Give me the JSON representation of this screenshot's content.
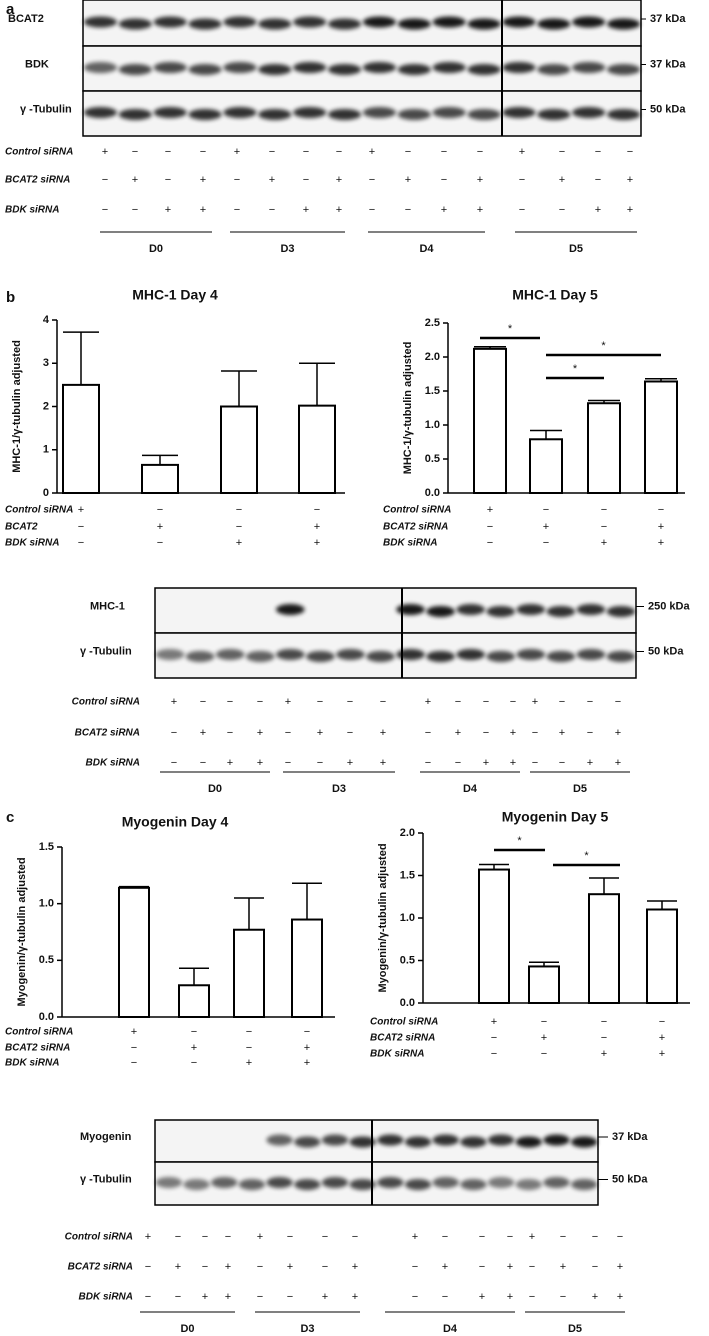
{
  "panel_labels": [
    "a",
    "b",
    "c"
  ],
  "blot_a": {
    "rows": [
      "BCAT2",
      "BDK",
      "γ -Tubulin"
    ],
    "markers": [
      "37 kDa",
      "37 kDa",
      "50 kDa"
    ],
    "conditions": [
      {
        "name": "Control siRNA",
        "signs": [
          "+",
          "−",
          "−",
          "−",
          "+",
          "−",
          "−",
          "−",
          "+",
          "−",
          "−",
          "−",
          "+",
          "−",
          "−",
          "−"
        ]
      },
      {
        "name": "BCAT2 siRNA",
        "signs": [
          "−",
          "+",
          "−",
          "+",
          "−",
          "+",
          "−",
          "+",
          "−",
          "+",
          "−",
          "+",
          "−",
          "+",
          "−",
          "+"
        ]
      },
      {
        "name": "BDK siRNA",
        "signs": [
          "−",
          "−",
          "+",
          "+",
          "−",
          "−",
          "+",
          "+",
          "−",
          "−",
          "+",
          "+",
          "−",
          "−",
          "+",
          "+"
        ]
      }
    ],
    "groups": [
      "D0",
      "D3",
      "D4",
      "D5"
    ]
  },
  "blot_b": {
    "rows": [
      "MHC-1",
      "γ -Tubulin"
    ],
    "markers": [
      "250 kDa",
      "50 kDa"
    ],
    "conditions": [
      {
        "name": "Control siRNA",
        "signs": [
          "+",
          "−",
          "−",
          "−",
          "+",
          "−",
          "−",
          "−",
          "+",
          "−",
          "−",
          "−",
          "+",
          "−",
          "−",
          "−"
        ]
      },
      {
        "name": "BCAT2 siRNA",
        "signs": [
          "−",
          "+",
          "−",
          "+",
          "−",
          "+",
          "−",
          "+",
          "−",
          "+",
          "−",
          "+",
          "−",
          "+",
          "−",
          "+"
        ]
      },
      {
        "name": "BDK siRNA",
        "signs": [
          "−",
          "−",
          "+",
          "+",
          "−",
          "−",
          "+",
          "+",
          "−",
          "−",
          "+",
          "+",
          "−",
          "−",
          "+",
          "+"
        ]
      }
    ],
    "groups": [
      "D0",
      "D3",
      "D4",
      "D5"
    ]
  },
  "blot_c": {
    "rows": [
      "Myogenin",
      "γ -Tubulin"
    ],
    "markers": [
      "37 kDa",
      "50 kDa"
    ],
    "conditions": [
      {
        "name": "Control siRNA",
        "signs": [
          "+",
          "−",
          "−",
          "−",
          "+",
          "−",
          "−",
          "−",
          "+",
          "−",
          "−",
          "−",
          "+",
          "−",
          "−",
          "−"
        ]
      },
      {
        "name": "BCAT2 siRNA",
        "signs": [
          "−",
          "+",
          "−",
          "+",
          "−",
          "+",
          "−",
          "+",
          "−",
          "+",
          "−",
          "+",
          "−",
          "+",
          "−",
          "+"
        ]
      },
      {
        "name": "BDK siRNA",
        "signs": [
          "−",
          "−",
          "+",
          "+",
          "−",
          "−",
          "+",
          "+",
          "−",
          "−",
          "+",
          "+",
          "−",
          "−",
          "+",
          "+"
        ]
      }
    ],
    "groups": [
      "D0",
      "D3",
      "D4",
      "D5"
    ]
  },
  "chart_data": [
    {
      "type": "bar",
      "title": "MHC-1 Day 4",
      "ylabel": "MHC-1/γ-tubulin adjusted",
      "values": [
        2.5,
        0.65,
        2.0,
        2.02
      ],
      "errors": [
        1.22,
        0.22,
        0.82,
        0.98
      ],
      "ylim": [
        0,
        4
      ],
      "yticks": [
        0,
        1,
        2,
        3,
        4
      ],
      "color": "#ffffff",
      "conditions": [
        {
          "name": "Control siRNA",
          "signs": [
            "+",
            "−",
            "−",
            "−"
          ]
        },
        {
          "name": "BCAT2",
          "signs": [
            "−",
            "+",
            "−",
            "+"
          ]
        },
        {
          "name": "BDK siRNA",
          "signs": [
            "−",
            "−",
            "+",
            "+"
          ]
        }
      ],
      "annotations": []
    },
    {
      "type": "bar",
      "title": "MHC-1 Day 5",
      "ylabel": "MHC-1/γ-tubulin adjusted",
      "values": [
        2.12,
        0.79,
        1.32,
        1.64
      ],
      "errors": [
        0.03,
        0.13,
        0.04,
        0.04
      ],
      "ylim": [
        0,
        2.5
      ],
      "yticks": [
        {
          "value": 0,
          "label": "0.0"
        },
        0.5,
        {
          "value": 1,
          "label": "1.0"
        },
        1.5,
        {
          "value": 2,
          "label": "2.0"
        },
        2.5
      ],
      "color": "#ffffff",
      "conditions": [
        {
          "name": "Control siRNA",
          "signs": [
            "+",
            "−",
            "−",
            "−"
          ]
        },
        {
          "name": "BCAT2 siRNA",
          "signs": [
            "−",
            "+",
            "−",
            "+"
          ]
        },
        {
          "name": "BDK siRNA",
          "signs": [
            "−",
            "−",
            "+",
            "+"
          ]
        }
      ],
      "annotations": [
        "*",
        "*",
        "*"
      ]
    },
    {
      "type": "bar",
      "title": "Myogenin Day 4",
      "ylabel": "Myogenin/γ-tubulin adjusted",
      "values": [
        1.14,
        0.28,
        0.77,
        0.86
      ],
      "errors": [
        0.01,
        0.15,
        0.28,
        0.32
      ],
      "ylim": [
        0,
        1.5
      ],
      "yticks": [
        {
          "value": 0,
          "label": "0.0"
        },
        0.5,
        {
          "value": 1,
          "label": "1.0"
        },
        1.5
      ],
      "color": "#ffffff",
      "conditions": [
        {
          "name": "Control siRNA",
          "signs": [
            "+",
            "−",
            "−",
            "−"
          ]
        },
        {
          "name": "BCAT2 siRNA",
          "signs": [
            "−",
            "+",
            "−",
            "+"
          ]
        },
        {
          "name": "BDK siRNA",
          "signs": [
            "−",
            "−",
            "+",
            "+"
          ]
        }
      ],
      "annotations": []
    },
    {
      "type": "bar",
      "title": "Myogenin Day 5",
      "ylabel": "Myogenin/γ-tubulin adjusted",
      "values": [
        1.57,
        0.43,
        1.28,
        1.1
      ],
      "errors": [
        0.06,
        0.05,
        0.19,
        0.1
      ],
      "ylim": [
        0,
        2
      ],
      "yticks": [
        {
          "value": 0,
          "label": "0.0"
        },
        0.5,
        {
          "value": 1,
          "label": "1.0"
        },
        1.5,
        {
          "value": 2,
          "label": "2.0"
        }
      ],
      "color": "#ffffff",
      "conditions": [
        {
          "name": "Control siRNA",
          "signs": [
            "+",
            "−",
            "−",
            "−"
          ]
        },
        {
          "name": "BCAT2 siRNA",
          "signs": [
            "−",
            "+",
            "−",
            "+"
          ]
        },
        {
          "name": "BDK siRNA",
          "signs": [
            "−",
            "−",
            "+",
            "+"
          ]
        }
      ],
      "annotations": [
        "*",
        "*"
      ]
    }
  ]
}
